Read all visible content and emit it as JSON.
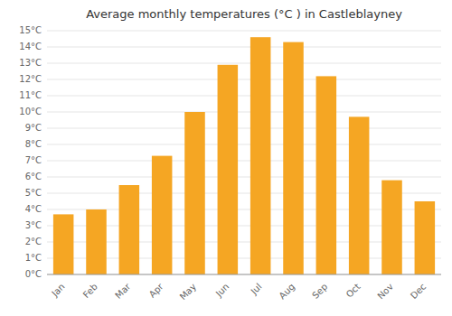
{
  "chart_data": {
    "type": "bar",
    "title": "Average monthly temperatures (°C ) in Castleblayney",
    "categories": [
      "Jan",
      "Feb",
      "Mar",
      "Apr",
      "May",
      "Jun",
      "Jul",
      "Aug",
      "Sep",
      "Oct",
      "Nov",
      "Dec"
    ],
    "values": [
      3.7,
      4.0,
      5.5,
      7.3,
      10.0,
      12.9,
      14.6,
      14.3,
      12.2,
      9.7,
      5.8,
      4.5
    ],
    "color": "#F5A623",
    "ylim": [
      0,
      15
    ],
    "yticks": [
      {
        "value": 0,
        "label": "0°C"
      },
      {
        "value": 1,
        "label": "1°C"
      },
      {
        "value": 2,
        "label": "2°C"
      },
      {
        "value": 3,
        "label": "3°C"
      },
      {
        "value": 4,
        "label": "4°C"
      },
      {
        "value": 5,
        "label": "5°C"
      },
      {
        "value": 6,
        "label": "6°C"
      },
      {
        "value": 7,
        "label": "7°C"
      },
      {
        "value": 8,
        "label": "8°C"
      },
      {
        "value": 9,
        "label": "9°C"
      },
      {
        "value": 10,
        "label": "10°C"
      },
      {
        "value": 11,
        "label": "11°C"
      },
      {
        "value": 12,
        "label": "12°C"
      },
      {
        "value": 13,
        "label": "13°C"
      },
      {
        "value": 14,
        "label": "14°C"
      },
      {
        "value": 15,
        "label": "15°C"
      }
    ],
    "grid": true
  }
}
